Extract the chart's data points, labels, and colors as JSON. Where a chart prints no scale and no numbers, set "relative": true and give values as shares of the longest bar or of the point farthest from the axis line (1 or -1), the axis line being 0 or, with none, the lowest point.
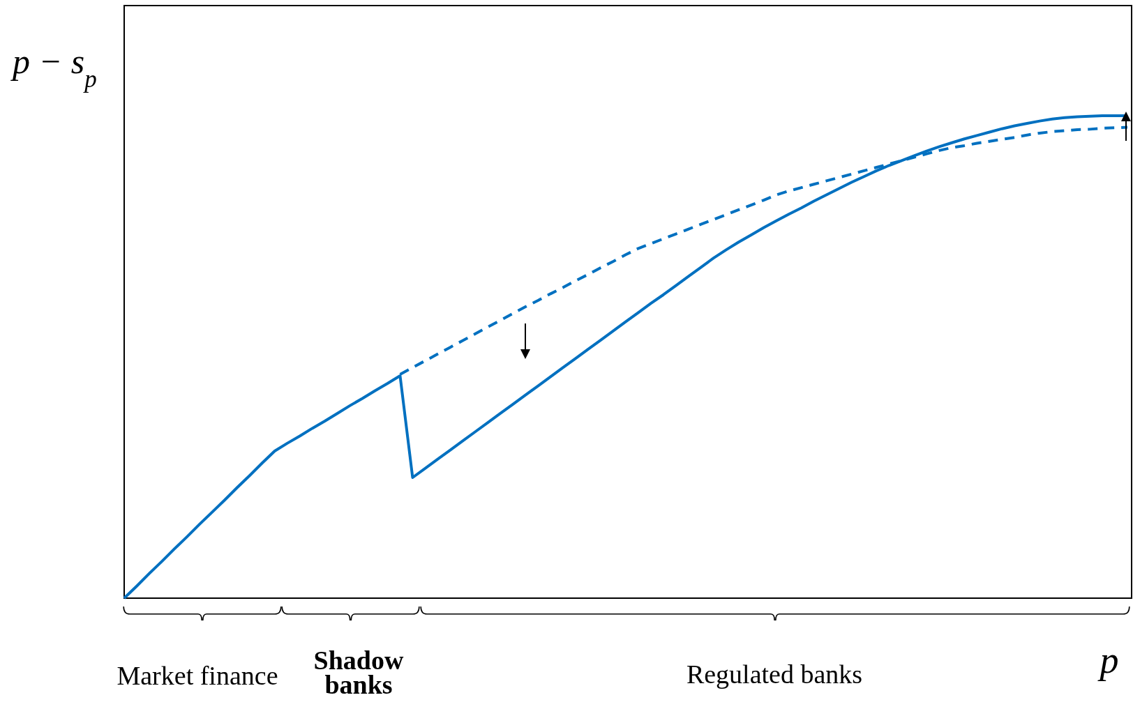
{
  "chart_data": {
    "type": "line",
    "relative": true,
    "xlabel": "p",
    "ylabel": "p − s$_{p}$",
    "categories": [
      null,
      null,
      null,
      null,
      null,
      null,
      null,
      null,
      null,
      null,
      null,
      null,
      null,
      null,
      null,
      null,
      null,
      null,
      null,
      null,
      null,
      null,
      null,
      null,
      null,
      null,
      null,
      null,
      null,
      null,
      null,
      null,
      null,
      null,
      null,
      null,
      null,
      null,
      null,
      null,
      null,
      null,
      null,
      null,
      null,
      null,
      null,
      null,
      null,
      null,
      null,
      null,
      null,
      null,
      null,
      null,
      null,
      null,
      null,
      null,
      null,
      null,
      null,
      null,
      null,
      null,
      null,
      null,
      null,
      null,
      null,
      null,
      null,
      null,
      null,
      null,
      null,
      null,
      null,
      null,
      null
    ],
    "series": [
      {
        "color": "#0070c0",
        "line_style": "solid",
        "values": [
          0,
          0.025,
          0.051,
          0.076,
          0.102,
          0.127,
          0.153,
          0.178,
          0.203,
          0.229,
          0.254,
          0.28,
          0.305,
          0.321,
          0.336,
          0.352,
          0.367,
          0.383,
          0.399,
          0.414,
          0.43,
          0.445,
          0.461,
          0.25,
          0.269,
          0.288,
          0.307,
          0.326,
          0.345,
          0.364,
          0.383,
          0.402,
          0.421,
          0.44,
          0.459,
          0.478,
          0.497,
          0.516,
          0.535,
          0.554,
          0.573,
          0.592,
          0.611,
          0.629,
          0.648,
          0.667,
          0.686,
          0.705,
          0.722,
          0.738,
          0.753,
          0.768,
          0.782,
          0.796,
          0.809,
          0.823,
          0.836,
          0.849,
          0.862,
          0.874,
          0.886,
          0.897,
          0.907,
          0.917,
          0.927,
          0.936,
          0.944,
          0.952,
          0.959,
          0.966,
          0.973,
          0.979,
          0.984,
          0.989,
          0.993,
          0.996,
          0.998,
          0.999,
          1.0,
          1.0,
          1.0
        ]
      },
      {
        "color": "#0070c0",
        "line_style": "dashed",
        "values": [
          null,
          null,
          null,
          null,
          null,
          null,
          null,
          null,
          null,
          null,
          null,
          null,
          null,
          null,
          null,
          null,
          null,
          null,
          null,
          null,
          null,
          null,
          0.464,
          0.478,
          0.492,
          0.506,
          0.52,
          0.534,
          0.548,
          0.562,
          0.576,
          0.59,
          0.604,
          0.617,
          0.631,
          0.644,
          0.658,
          0.671,
          0.685,
          0.698,
          0.712,
          0.725,
          0.735,
          0.745,
          0.755,
          0.765,
          0.775,
          0.785,
          0.795,
          0.805,
          0.815,
          0.825,
          0.836,
          0.844,
          0.851,
          0.858,
          0.865,
          0.872,
          0.879,
          0.886,
          0.893,
          0.9,
          0.907,
          0.914,
          0.921,
          0.928,
          0.934,
          0.938,
          0.943,
          0.947,
          0.951,
          0.955,
          0.96,
          0.964,
          0.967,
          0.969,
          0.971,
          0.972,
          0.974,
          0.975,
          0.976
        ]
      }
    ],
    "annotations": [
      "Market finance",
      "Shadow banks",
      "Regulated banks"
    ]
  }
}
